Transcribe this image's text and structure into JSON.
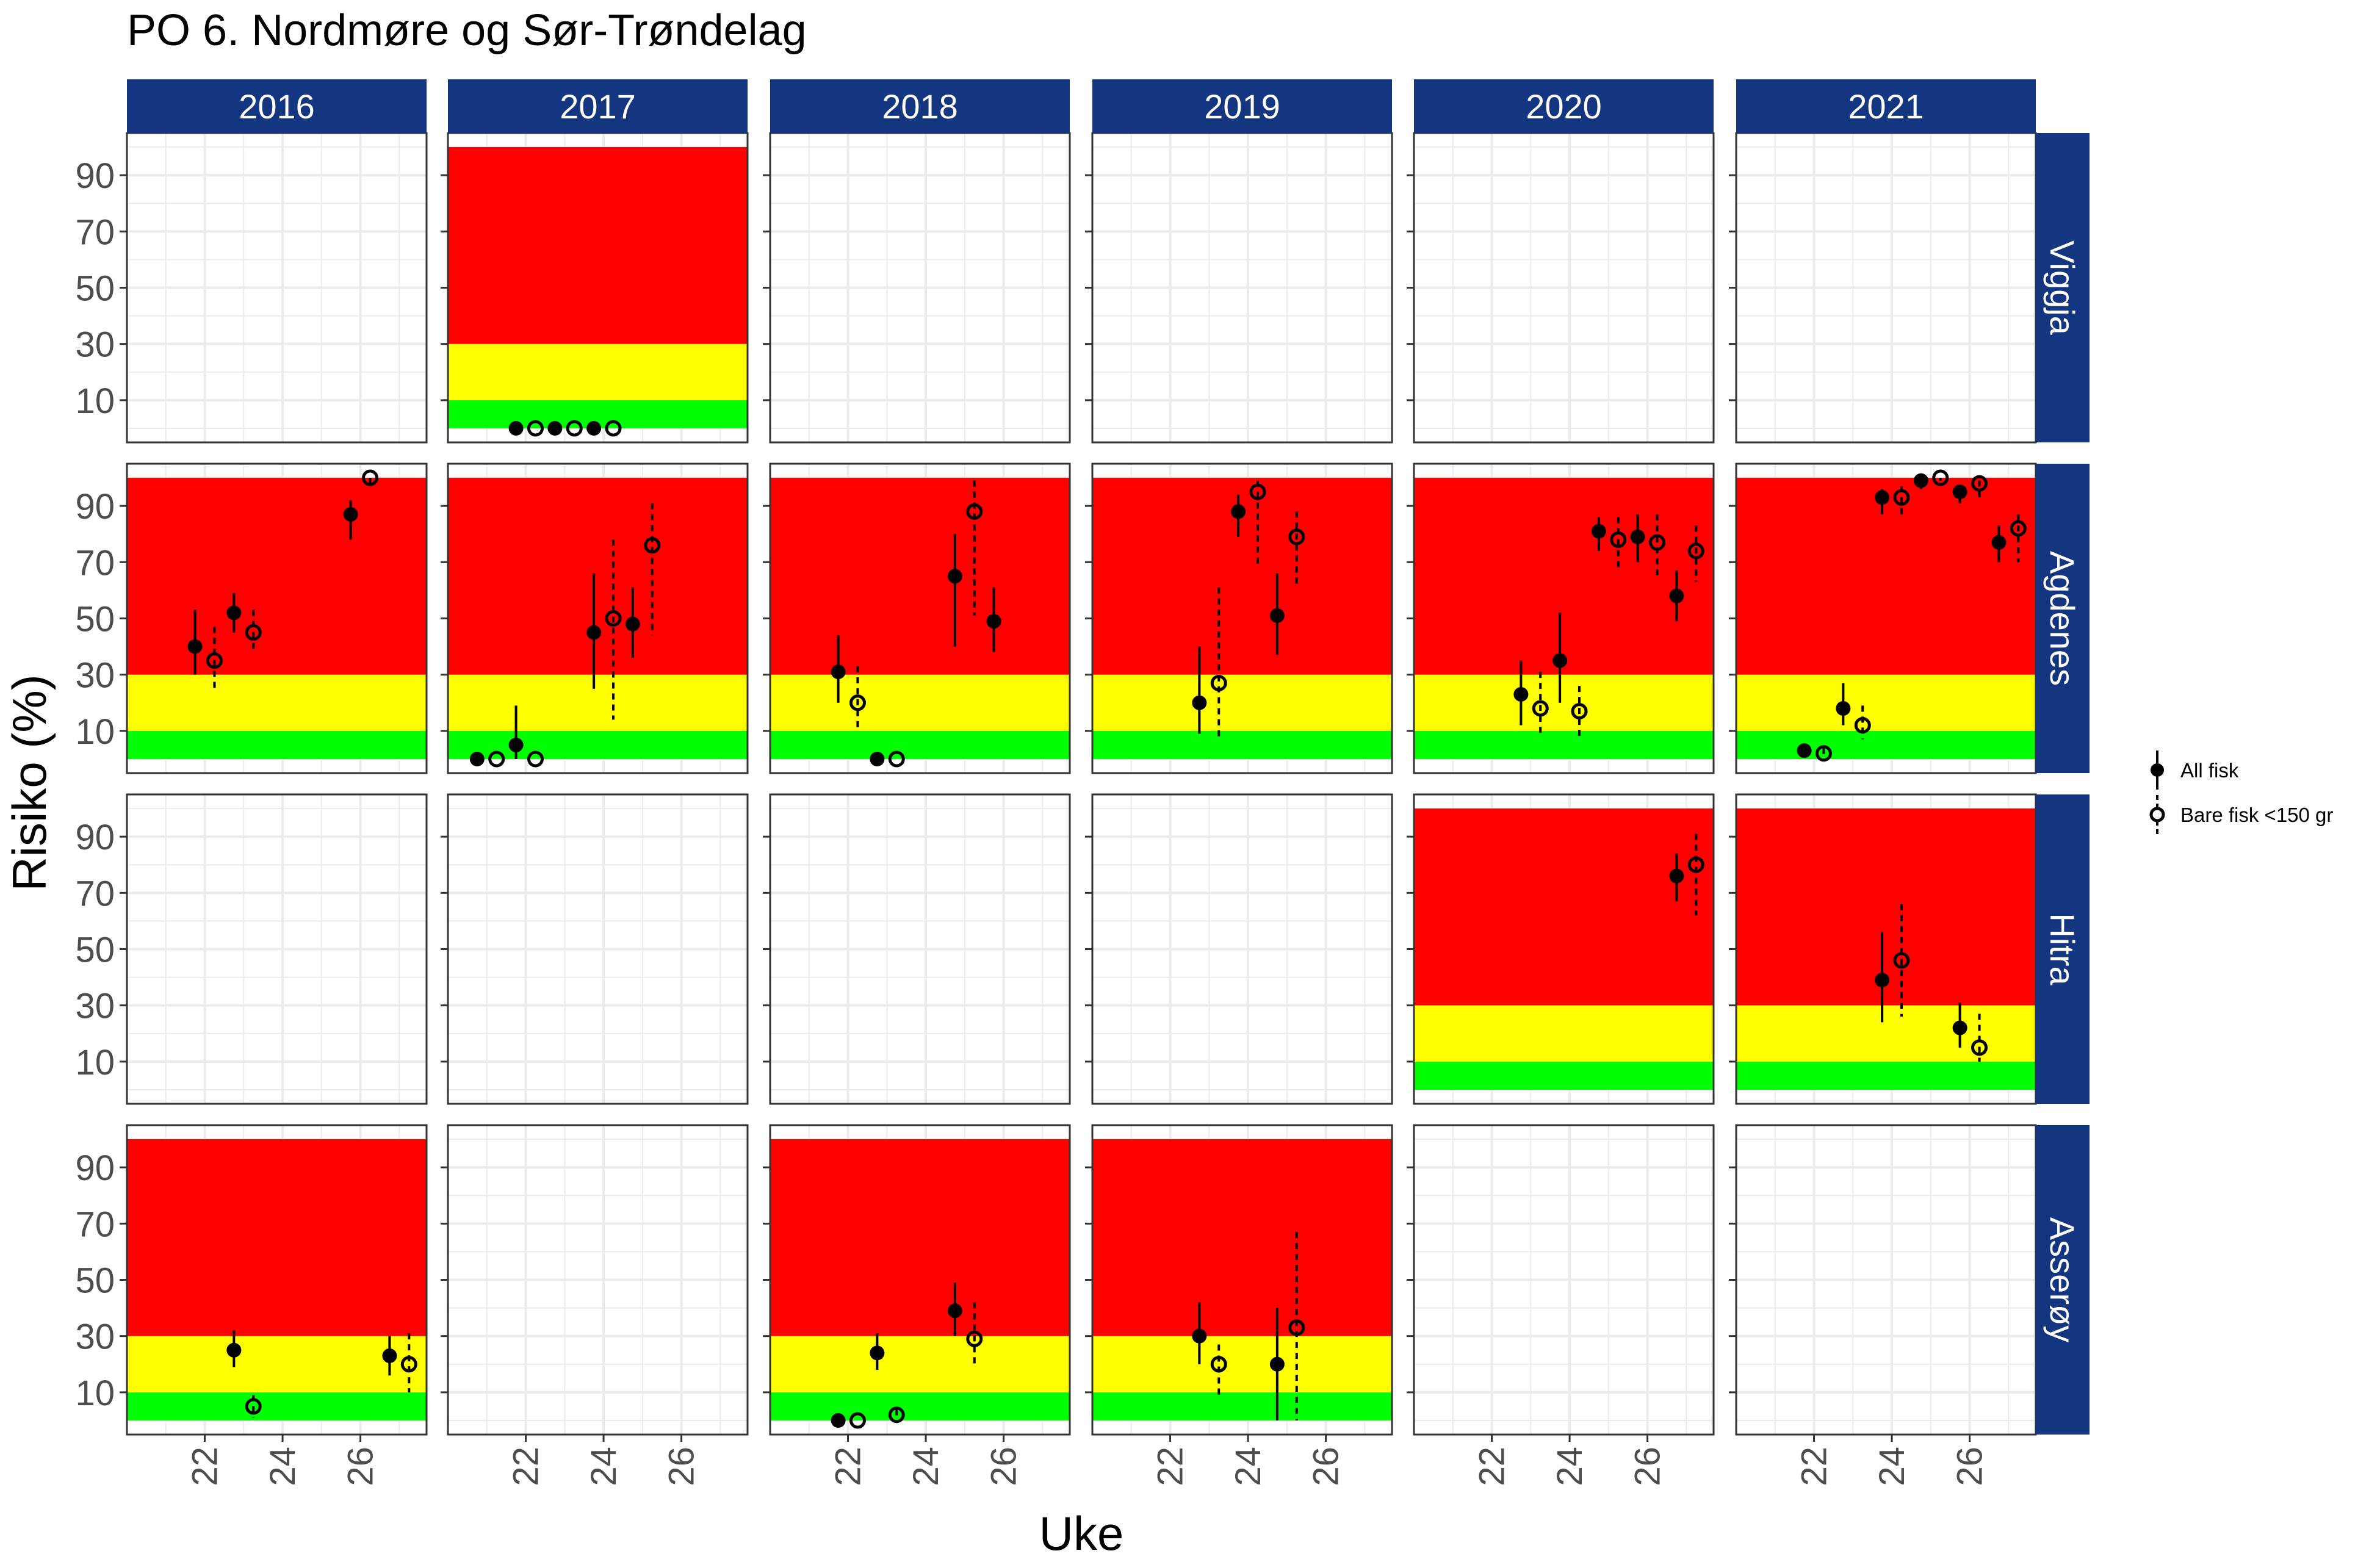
{
  "chart_data": {
    "type": "faceted-pointrange",
    "title": "PO 6. Nordmøre og Sør-Trøndelag",
    "xlabel": "Uke",
    "ylabel": "Risiko (%)",
    "xlim": [
      20,
      27.7
    ],
    "ylim": [
      -5,
      105
    ],
    "x_ticks": [
      22,
      24,
      26
    ],
    "y_ticks": [
      10,
      30,
      50,
      70,
      90
    ],
    "years": [
      "2016",
      "2017",
      "2018",
      "2019",
      "2020",
      "2021"
    ],
    "stations": [
      "Viggja",
      "Agdenes",
      "Hitra",
      "Asserøy"
    ],
    "risk_bands": [
      {
        "name": "green",
        "from": 0,
        "to": 10,
        "color": "#00ff00"
      },
      {
        "name": "yellow",
        "from": 10,
        "to": 30,
        "color": "#ffff00"
      },
      {
        "name": "red",
        "from": 30,
        "to": 100,
        "color": "#ff0000"
      }
    ],
    "colors": {
      "strip": "#143680",
      "strip_text": "#ffffff",
      "grid": "#ebebeb",
      "panel_border": "#333333",
      "axis_text": "#4d4d4d"
    },
    "legend": {
      "position": "right",
      "items": [
        {
          "label": "All fisk",
          "shape": "filled-circle",
          "line": "solid"
        },
        {
          "label": "Bare fisk <150 gr",
          "shape": "open-circle",
          "line": "dashed"
        }
      ]
    },
    "panels": [
      {
        "station": "Viggja",
        "year": "2017",
        "bands": true,
        "points": [
          {
            "series": "All fisk",
            "x": 21.75,
            "y": 0,
            "lo": 0,
            "hi": 0
          },
          {
            "series": "Bare fisk <150 gr",
            "x": 22.25,
            "y": 0,
            "lo": 0,
            "hi": 0
          },
          {
            "series": "All fisk",
            "x": 22.75,
            "y": 0,
            "lo": 0,
            "hi": 0
          },
          {
            "series": "Bare fisk <150 gr",
            "x": 23.25,
            "y": 0,
            "lo": 0,
            "hi": 0
          },
          {
            "series": "All fisk",
            "x": 23.75,
            "y": 0,
            "lo": 0,
            "hi": 0
          },
          {
            "series": "Bare fisk <150 gr",
            "x": 24.25,
            "y": 0,
            "lo": 0,
            "hi": 0
          }
        ]
      },
      {
        "station": "Agdenes",
        "year": "2016",
        "bands": true,
        "points": [
          {
            "series": "All fisk",
            "x": 21.75,
            "y": 40,
            "lo": 30,
            "hi": 53
          },
          {
            "series": "Bare fisk <150 gr",
            "x": 22.25,
            "y": 35,
            "lo": 25,
            "hi": 47
          },
          {
            "series": "All fisk",
            "x": 22.75,
            "y": 52,
            "lo": 45,
            "hi": 59
          },
          {
            "series": "Bare fisk <150 gr",
            "x": 23.25,
            "y": 45,
            "lo": 38,
            "hi": 53
          },
          {
            "series": "All fisk",
            "x": 25.75,
            "y": 87,
            "lo": 78,
            "hi": 92
          },
          {
            "series": "Bare fisk <150 gr",
            "x": 26.25,
            "y": 100,
            "lo": 98,
            "hi": 100
          }
        ]
      },
      {
        "station": "Agdenes",
        "year": "2017",
        "bands": true,
        "points": [
          {
            "series": "All fisk",
            "x": 20.75,
            "y": 0,
            "lo": 0,
            "hi": 0
          },
          {
            "series": "Bare fisk <150 gr",
            "x": 21.25,
            "y": 0,
            "lo": 0,
            "hi": 0
          },
          {
            "series": "All fisk",
            "x": 21.75,
            "y": 5,
            "lo": 0,
            "hi": 19
          },
          {
            "series": "Bare fisk <150 gr",
            "x": 22.25,
            "y": 0,
            "lo": 0,
            "hi": 0
          },
          {
            "series": "All fisk",
            "x": 23.75,
            "y": 45,
            "lo": 25,
            "hi": 66
          },
          {
            "series": "Bare fisk <150 gr",
            "x": 24.25,
            "y": 50,
            "lo": 14,
            "hi": 78
          },
          {
            "series": "All fisk",
            "x": 24.75,
            "y": 48,
            "lo": 36,
            "hi": 61
          },
          {
            "series": "Bare fisk <150 gr",
            "x": 25.25,
            "y": 76,
            "lo": 44,
            "hi": 91
          }
        ]
      },
      {
        "station": "Agdenes",
        "year": "2018",
        "bands": true,
        "points": [
          {
            "series": "All fisk",
            "x": 21.75,
            "y": 31,
            "lo": 20,
            "hi": 44
          },
          {
            "series": "Bare fisk <150 gr",
            "x": 22.25,
            "y": 20,
            "lo": 11,
            "hi": 33
          },
          {
            "series": "All fisk",
            "x": 22.75,
            "y": 0,
            "lo": 0,
            "hi": 0
          },
          {
            "series": "Bare fisk <150 gr",
            "x": 23.25,
            "y": 0,
            "lo": 0,
            "hi": 0
          },
          {
            "series": "All fisk",
            "x": 24.75,
            "y": 65,
            "lo": 40,
            "hi": 80
          },
          {
            "series": "Bare fisk <150 gr",
            "x": 25.25,
            "y": 88,
            "lo": 51,
            "hi": 99
          },
          {
            "series": "All fisk",
            "x": 25.75,
            "y": 49,
            "lo": 38,
            "hi": 61
          }
        ]
      },
      {
        "station": "Agdenes",
        "year": "2019",
        "bands": true,
        "points": [
          {
            "series": "All fisk",
            "x": 22.75,
            "y": 20,
            "lo": 9,
            "hi": 40
          },
          {
            "series": "Bare fisk <150 gr",
            "x": 23.25,
            "y": 27,
            "lo": 8,
            "hi": 61
          },
          {
            "series": "All fisk",
            "x": 23.75,
            "y": 88,
            "lo": 79,
            "hi": 94
          },
          {
            "series": "Bare fisk <150 gr",
            "x": 24.25,
            "y": 95,
            "lo": 68,
            "hi": 99
          },
          {
            "series": "All fisk",
            "x": 24.75,
            "y": 51,
            "lo": 37,
            "hi": 66
          },
          {
            "series": "Bare fisk <150 gr",
            "x": 25.25,
            "y": 79,
            "lo": 62,
            "hi": 88
          }
        ]
      },
      {
        "station": "Agdenes",
        "year": "2020",
        "bands": true,
        "points": [
          {
            "series": "All fisk",
            "x": 22.75,
            "y": 23,
            "lo": 12,
            "hi": 35
          },
          {
            "series": "Bare fisk <150 gr",
            "x": 23.25,
            "y": 18,
            "lo": 8,
            "hi": 31
          },
          {
            "series": "All fisk",
            "x": 23.75,
            "y": 35,
            "lo": 20,
            "hi": 52
          },
          {
            "series": "Bare fisk <150 gr",
            "x": 24.25,
            "y": 17,
            "lo": 8,
            "hi": 26
          },
          {
            "series": "All fisk",
            "x": 24.75,
            "y": 81,
            "lo": 74,
            "hi": 86
          },
          {
            "series": "Bare fisk <150 gr",
            "x": 25.25,
            "y": 78,
            "lo": 68,
            "hi": 86
          },
          {
            "series": "All fisk",
            "x": 25.75,
            "y": 79,
            "lo": 70,
            "hi": 87
          },
          {
            "series": "Bare fisk <150 gr",
            "x": 26.25,
            "y": 77,
            "lo": 65,
            "hi": 87
          },
          {
            "series": "All fisk",
            "x": 26.75,
            "y": 58,
            "lo": 49,
            "hi": 67
          },
          {
            "series": "Bare fisk <150 gr",
            "x": 27.25,
            "y": 74,
            "lo": 63,
            "hi": 83
          }
        ]
      },
      {
        "station": "Agdenes",
        "year": "2021",
        "bands": true,
        "points": [
          {
            "series": "All fisk",
            "x": 21.75,
            "y": 3,
            "lo": 2,
            "hi": 5
          },
          {
            "series": "Bare fisk <150 gr",
            "x": 22.25,
            "y": 2,
            "lo": 1,
            "hi": 4
          },
          {
            "series": "All fisk",
            "x": 22.75,
            "y": 18,
            "lo": 12,
            "hi": 27
          },
          {
            "series": "Bare fisk <150 gr",
            "x": 23.25,
            "y": 12,
            "lo": 7,
            "hi": 19
          },
          {
            "series": "All fisk",
            "x": 23.75,
            "y": 93,
            "lo": 87,
            "hi": 96
          },
          {
            "series": "Bare fisk <150 gr",
            "x": 24.25,
            "y": 93,
            "lo": 86,
            "hi": 97
          },
          {
            "series": "All fisk",
            "x": 24.75,
            "y": 99,
            "lo": 96,
            "hi": 100
          },
          {
            "series": "Bare fisk <150 gr",
            "x": 25.25,
            "y": 100,
            "lo": 99,
            "hi": 100
          },
          {
            "series": "All fisk",
            "x": 25.75,
            "y": 95,
            "lo": 91,
            "hi": 97
          },
          {
            "series": "Bare fisk <150 gr",
            "x": 26.25,
            "y": 98,
            "lo": 93,
            "hi": 99
          },
          {
            "series": "All fisk",
            "x": 26.75,
            "y": 77,
            "lo": 70,
            "hi": 83
          },
          {
            "series": "Bare fisk <150 gr",
            "x": 27.25,
            "y": 82,
            "lo": 70,
            "hi": 87
          }
        ]
      },
      {
        "station": "Hitra",
        "year": "2020",
        "bands": true,
        "points": [
          {
            "series": "All fisk",
            "x": 26.75,
            "y": 76,
            "lo": 67,
            "hi": 84
          },
          {
            "series": "Bare fisk <150 gr",
            "x": 27.25,
            "y": 80,
            "lo": 62,
            "hi": 91
          }
        ]
      },
      {
        "station": "Hitra",
        "year": "2021",
        "bands": true,
        "points": [
          {
            "series": "All fisk",
            "x": 23.75,
            "y": 39,
            "lo": 24,
            "hi": 56
          },
          {
            "series": "Bare fisk <150 gr",
            "x": 24.25,
            "y": 46,
            "lo": 26,
            "hi": 66
          },
          {
            "series": "All fisk",
            "x": 25.75,
            "y": 22,
            "lo": 15,
            "hi": 31
          },
          {
            "series": "Bare fisk <150 gr",
            "x": 26.25,
            "y": 15,
            "lo": 10,
            "hi": 27
          }
        ]
      },
      {
        "station": "Asserøy",
        "year": "2016",
        "bands": true,
        "points": [
          {
            "series": "All fisk",
            "x": 22.75,
            "y": 25,
            "lo": 19,
            "hi": 32
          },
          {
            "series": "Bare fisk <150 gr",
            "x": 23.25,
            "y": 5,
            "lo": 1,
            "hi": 9
          },
          {
            "series": "All fisk",
            "x": 26.75,
            "y": 23,
            "lo": 16,
            "hi": 30
          },
          {
            "series": "Bare fisk <150 gr",
            "x": 27.25,
            "y": 20,
            "lo": 10,
            "hi": 31
          }
        ]
      },
      {
        "station": "Asserøy",
        "year": "2018",
        "bands": true,
        "points": [
          {
            "series": "All fisk",
            "x": 21.75,
            "y": 0,
            "lo": 0,
            "hi": 0
          },
          {
            "series": "Bare fisk <150 gr",
            "x": 22.25,
            "y": 0,
            "lo": 0,
            "hi": 0
          },
          {
            "series": "All fisk",
            "x": 22.75,
            "y": 24,
            "lo": 18,
            "hi": 31
          },
          {
            "series": "Bare fisk <150 gr",
            "x": 23.25,
            "y": 2,
            "lo": 0,
            "hi": 4
          },
          {
            "series": "All fisk",
            "x": 24.75,
            "y": 39,
            "lo": 30,
            "hi": 49
          },
          {
            "series": "Bare fisk <150 gr",
            "x": 25.25,
            "y": 29,
            "lo": 19,
            "hi": 42
          }
        ]
      },
      {
        "station": "Asserøy",
        "year": "2019",
        "bands": true,
        "points": [
          {
            "series": "All fisk",
            "x": 22.75,
            "y": 30,
            "lo": 20,
            "hi": 42
          },
          {
            "series": "Bare fisk <150 gr",
            "x": 23.25,
            "y": 20,
            "lo": 9,
            "hi": 27
          },
          {
            "series": "All fisk",
            "x": 24.75,
            "y": 20,
            "lo": 0,
            "hi": 40
          },
          {
            "series": "Bare fisk <150 gr",
            "x": 25.25,
            "y": 33,
            "lo": 0,
            "hi": 67
          }
        ]
      }
    ]
  }
}
